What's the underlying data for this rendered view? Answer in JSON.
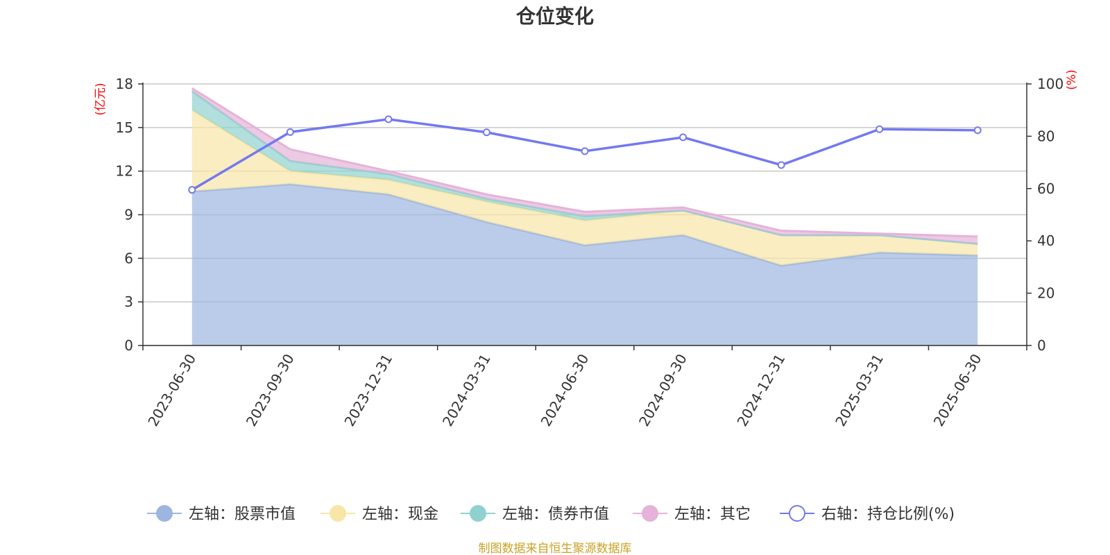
{
  "chart_data": {
    "type": "area",
    "title": "仓位变化",
    "categories": [
      "2023-06-30",
      "2023-09-30",
      "2023-12-31",
      "2024-03-31",
      "2024-06-30",
      "2024-09-30",
      "2024-12-31",
      "2025-03-31",
      "2025-06-30"
    ],
    "left_axis": {
      "unit": "(亿元)",
      "ticks": [
        "0",
        "3",
        "6",
        "9",
        "12",
        "15",
        "18"
      ],
      "ylim": [
        0,
        18
      ]
    },
    "right_axis": {
      "unit": "(%)",
      "ticks": [
        "0",
        "20",
        "40",
        "60",
        "80",
        "100"
      ],
      "ylim": [
        0,
        100
      ]
    },
    "series": [
      {
        "name": "左轴：股票市值",
        "axis": "left",
        "stacked": true,
        "values": [
          10.6,
          11.1,
          10.4,
          8.5,
          6.9,
          7.6,
          5.5,
          6.4,
          6.2
        ],
        "color": "#9db6e0"
      },
      {
        "name": "左轴：现金",
        "axis": "left",
        "stacked": true,
        "values": [
          5.6,
          0.9,
          1.0,
          1.4,
          1.7,
          1.7,
          2.1,
          1.2,
          0.8
        ],
        "color": "#f7e6a6"
      },
      {
        "name": "左轴：债券市值",
        "axis": "left",
        "stacked": true,
        "values": [
          1.3,
          0.7,
          0.4,
          0.2,
          0.3,
          0.0,
          0.0,
          0.0,
          0.0
        ],
        "color": "#8fd1cf"
      },
      {
        "name": "左轴：其它",
        "axis": "left",
        "stacked": true,
        "values": [
          0.2,
          0.8,
          0.2,
          0.3,
          0.3,
          0.2,
          0.3,
          0.1,
          0.5
        ],
        "color": "#e5b3d9"
      },
      {
        "name": "右轴：持仓比例(%)",
        "axis": "right",
        "type": "line",
        "values": [
          59.5,
          81.6,
          86.5,
          81.5,
          74.3,
          79.6,
          69.0,
          82.7,
          82.3
        ],
        "color": "#7378f0"
      }
    ],
    "grid": true,
    "legend_position": "bottom"
  },
  "footer": {
    "source": "制图数据来自恒生聚源数据库"
  }
}
